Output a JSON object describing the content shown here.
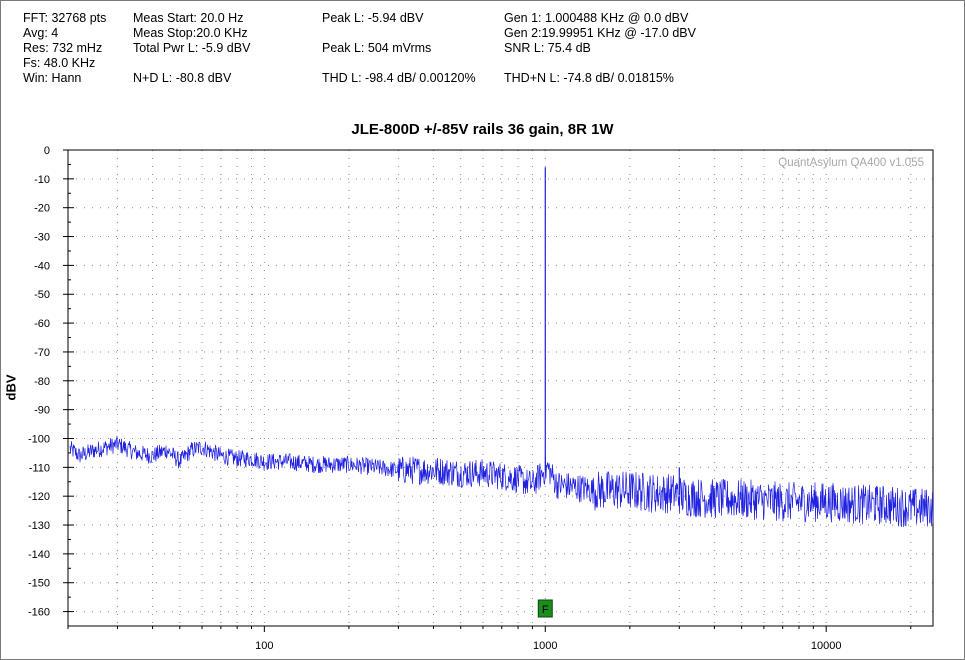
{
  "stats": {
    "fft": "FFT: 32768 pts",
    "avg": "Avg: 4",
    "res": "Res: 732 mHz",
    "fs": "Fs: 48.0 KHz",
    "win": "Win: Hann",
    "meas_start": "Meas Start: 20.0 Hz",
    "meas_stop": "Meas Stop:20.0 KHz",
    "total_pwr": "Total Pwr L: -5.9 dBV",
    "nd": "N+D L: -80.8 dBV",
    "peak_l_dbv": "Peak L: -5.94 dBV",
    "peak_l_mv": "Peak L: 504 mVrms",
    "thd": "THD L: -98.4 dB/ 0.00120%",
    "gen1": "Gen 1: 1.000488 KHz @ 0.0  dBV",
    "gen2": "Gen 2:19.99951 KHz @ -17.0  dBV",
    "snr": "SNR L: 75.4 dB",
    "thdn": "THD+N L: -74.8 dB/ 0.01815%"
  },
  "watermark": "QuantAsylum QA400 v1.055",
  "marker_label": "F",
  "colors": {
    "trace": "#2020e0",
    "marker": "#1c8c1c",
    "grid": "#8a8a8a",
    "watermark": "#a8a8a8"
  },
  "chart_data": {
    "type": "line",
    "title": "JLE-800D +/-85V rails 36 gain, 8R 1W",
    "xlabel": "",
    "ylabel": "dBV",
    "x_scale": "log",
    "xlim": [
      20,
      24000
    ],
    "ylim": [
      -165,
      0
    ],
    "x_tick_labels": [
      "100",
      "1000",
      "10000"
    ],
    "y_tick_labels": [
      "0",
      "-10",
      "-20",
      "-30",
      "-40",
      "-50",
      "-60",
      "-70",
      "-80",
      "-90",
      "-100",
      "-110",
      "-120",
      "-130",
      "-140",
      "-150",
      "-160"
    ],
    "grid": true,
    "marker": {
      "label": "F",
      "x": 1000
    },
    "series": [
      {
        "x": [
          20,
          22,
          25,
          30,
          35,
          40,
          45,
          50,
          55,
          60,
          70,
          80,
          90,
          100,
          120,
          150,
          200,
          250,
          300,
          400,
          500,
          600,
          700,
          800,
          900,
          980,
          1000,
          1020,
          1100,
          1300,
          1500,
          2000,
          2500,
          2900,
          3000,
          3100,
          4000,
          5000,
          7000,
          10000,
          14000,
          15000,
          16000,
          20000,
          24000
        ],
        "y": [
          -103,
          -106,
          -104,
          -102,
          -105,
          -106,
          -104,
          -108,
          -104,
          -103,
          -106,
          -107,
          -107,
          -108,
          -108,
          -109,
          -109,
          -110,
          -111,
          -111,
          -112,
          -112,
          -113,
          -114,
          -116,
          -112,
          -6,
          -110,
          -116,
          -117,
          -118,
          -118,
          -119,
          -119,
          -110,
          -120,
          -121,
          -121,
          -122,
          -122,
          -123,
          -117,
          -123,
          -124,
          -124
        ]
      }
    ]
  }
}
